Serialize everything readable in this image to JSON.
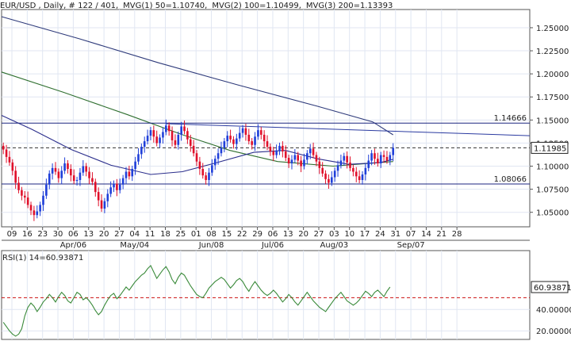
{
  "header": {
    "title": "EUR/USD , Daily, # 122 / 401,",
    "mvg1": "MVG(1) 50=1.10740,",
    "mvg2": "MVG(2) 100=1.10499,",
    "mvg3": "MVG(3) 200=1.13393"
  },
  "colors": {
    "background": "#ffffff",
    "grid": "#e0e6f2",
    "axis_border": "#555555",
    "candle_up": "#1f3fd9",
    "candle_down": "#e0102a",
    "ma50": "#2b2e8c",
    "ma100": "#2f6f2f",
    "ma200": "#2e3a7a",
    "level_line": "#1c2680",
    "resistance_trend": "#2a3aa0",
    "price_line": "#333333",
    "rsi_line": "#3a8a3a",
    "rsi_ref": "#cc1111",
    "label_box": "#ffffff"
  },
  "chart_data": [
    {
      "type": "candlestick",
      "title": "EUR/USD , Daily",
      "ylim": [
        1.036,
        1.268
      ],
      "y_ticks": [
        1.05,
        1.075,
        1.1,
        1.125,
        1.15,
        1.175,
        1.2,
        1.225,
        1.25
      ],
      "y_tick_labels": [
        "1.05000",
        "1.07500",
        "1.10000",
        "1.12500",
        "1.15000",
        "1.17500",
        "1.20000",
        "1.22500",
        "1.25000"
      ],
      "x_tick_labels": [
        "09",
        "16",
        "23",
        "30",
        "06",
        "13",
        "20",
        "27",
        "04",
        "11",
        "18",
        "25",
        "01",
        "08",
        "15",
        "22",
        "29",
        "06",
        "13",
        "20",
        "27",
        "03",
        "10",
        "17",
        "24",
        "31",
        "07",
        "14",
        "21",
        "28"
      ],
      "month_labels": [
        {
          "label": "Apr/06",
          "tick": 4
        },
        {
          "label": "May/04",
          "tick": 8
        },
        {
          "label": "Jun/08",
          "tick": 13
        },
        {
          "label": "Jul/06",
          "tick": 17
        },
        {
          "label": "Aug/03",
          "tick": 21
        },
        {
          "label": "Sep/07",
          "tick": 26
        }
      ],
      "horizontal_levels": [
        {
          "value": 1.14666,
          "label": "1.14666",
          "style": "solid"
        },
        {
          "value": 1.08066,
          "label": "1.08066",
          "style": "solid"
        },
        {
          "value": 1.11985,
          "label": "1.11985",
          "style": "dashed"
        }
      ],
      "current_price": 1.11985,
      "close": [
        1.118,
        1.11,
        1.104,
        1.095,
        1.082,
        1.074,
        1.068,
        1.066,
        1.058,
        1.052,
        1.047,
        1.051,
        1.058,
        1.068,
        1.08,
        1.092,
        1.098,
        1.094,
        1.087,
        1.095,
        1.103,
        1.097,
        1.09,
        1.084,
        1.085,
        1.093,
        1.1,
        1.094,
        1.087,
        1.083,
        1.072,
        1.063,
        1.054,
        1.062,
        1.07,
        1.077,
        1.081,
        1.074,
        1.08,
        1.087,
        1.094,
        1.089,
        1.097,
        1.105,
        1.113,
        1.121,
        1.127,
        1.133,
        1.139,
        1.132,
        1.125,
        1.131,
        1.137,
        1.144,
        1.138,
        1.128,
        1.123,
        1.134,
        1.143,
        1.138,
        1.129,
        1.122,
        1.114,
        1.105,
        1.097,
        1.09,
        1.085,
        1.093,
        1.101,
        1.108,
        1.114,
        1.12,
        1.127,
        1.133,
        1.129,
        1.124,
        1.13,
        1.136,
        1.141,
        1.134,
        1.127,
        1.123,
        1.132,
        1.139,
        1.134,
        1.127,
        1.121,
        1.116,
        1.112,
        1.117,
        1.122,
        1.116,
        1.109,
        1.103,
        1.107,
        1.112,
        1.106,
        1.1,
        1.107,
        1.114,
        1.119,
        1.112,
        1.105,
        1.098,
        1.092,
        1.086,
        1.082,
        1.088,
        1.095,
        1.101,
        1.106,
        1.111,
        1.104,
        1.098,
        1.094,
        1.089,
        1.085,
        1.091,
        1.098,
        1.106,
        1.114,
        1.108,
        1.103,
        1.112,
        1.11,
        1.106,
        1.112,
        1.11985
      ],
      "series": [
        {
          "name": "MVG(1) 50",
          "value": 1.1074
        },
        {
          "name": "MVG(2) 100",
          "value": 1.10499
        },
        {
          "name": "MVG(3) 200",
          "value": 1.13393
        }
      ]
    },
    {
      "type": "line",
      "title": "RSI(1) 14=60.93871",
      "ylim": [
        12,
        92
      ],
      "y_ticks": [
        20,
        40
      ],
      "y_tick_labels": [
        "20.00000",
        "40.00000"
      ],
      "reference_line": 51,
      "current_value_label": "60.93871",
      "values": [
        28,
        24,
        20,
        17,
        15,
        17,
        22,
        34,
        42,
        46,
        43,
        38,
        42,
        47,
        50,
        54,
        51,
        47,
        52,
        56,
        53,
        48,
        46,
        51,
        56,
        54,
        49,
        51,
        48,
        44,
        39,
        35,
        38,
        44,
        49,
        53,
        55,
        50,
        53,
        57,
        61,
        58,
        62,
        66,
        69,
        72,
        74,
        78,
        81,
        75,
        69,
        73,
        77,
        80,
        75,
        68,
        64,
        70,
        74,
        72,
        67,
        62,
        58,
        54,
        52,
        51,
        55,
        60,
        63,
        66,
        68,
        70,
        68,
        64,
        60,
        63,
        67,
        69,
        66,
        61,
        57,
        62,
        66,
        62,
        58,
        55,
        53,
        55,
        58,
        55,
        51,
        47,
        50,
        54,
        51,
        47,
        44,
        48,
        52,
        56,
        52,
        48,
        45,
        42,
        40,
        38,
        42,
        46,
        50,
        53,
        56,
        52,
        48,
        46,
        44,
        46,
        49,
        53,
        57,
        55,
        52,
        56,
        58,
        55,
        52,
        57,
        60.9
      ]
    }
  ]
}
